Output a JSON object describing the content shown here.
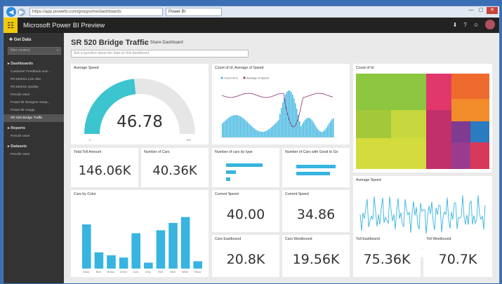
{
  "browser": {
    "address": "https://app.powerbi.com/groups/me/dashboards",
    "tab_label": "Power BI",
    "min": "—",
    "max": "▢",
    "close": "✕"
  },
  "app": {
    "title": "Microsoft Power BI Preview",
    "waffle_icon": "waffle-icon"
  },
  "sidebar": {
    "get_data": "Get Data",
    "filter_placeholder": "filter content",
    "dashboards_label": "Dashboards",
    "dashboards": [
      "Customer Feedback and...",
      "PD Metrics Live Site",
      "PD Metrics Quality",
      "Pencils Vase",
      "Power BI Designer Keep...",
      "Power BI Usage",
      "SR 520 Bridge Traffic"
    ],
    "reports_label": "Reports",
    "reports": [
      "Pencils Vase"
    ],
    "datasets_label": "Datasets",
    "datasets": [
      "Pencils Vase"
    ]
  },
  "dashboard": {
    "title": "SR 520 Bridge Traffic",
    "share": "Share Dashboard",
    "qa_placeholder": "Ask a question about the data on this dashboard"
  },
  "tiles": {
    "avg_speed": {
      "title": "Average Speed",
      "value": "46.78",
      "min": "0",
      "max": "100"
    },
    "count_id": {
      "title": "Count of Id, Average of Speed",
      "legend_a": "Count of Id",
      "legend_b": "Average of Speed"
    },
    "treemap": {
      "title": "Count of Id"
    },
    "total_toll": {
      "title": "Total Toll Amount",
      "value": "146.06K"
    },
    "num_cars": {
      "title": "Number of Cars",
      "value": "40.36K"
    },
    "cars_by_type": {
      "title": "Number of cars by type"
    },
    "cars_good": {
      "title": "Number of Cars with Good to Go"
    },
    "avg_speed_line": {
      "title": "Average Speed"
    },
    "cars_color": {
      "title": "Cars by Color",
      "categories": [
        "Black",
        "Blue",
        "Brown",
        "Green",
        "Gold",
        "Grey",
        "Red",
        "Silver",
        "White",
        "Yellow"
      ],
      "values": [
        60,
        22,
        18,
        15,
        48,
        8,
        52,
        62,
        70,
        10
      ]
    },
    "current_speed": {
      "title": "Current Speed",
      "value": "40.00"
    },
    "current_speed2": {
      "title": "Current Speed",
      "value": "34.86"
    },
    "cars_eastbound": {
      "title": "Cars Eastbound",
      "value": "20.8K"
    },
    "cars_westbound": {
      "title": "Cars Westbound",
      "value": "19.56K"
    },
    "toll_eastbound": {
      "title": "Toll Eastbound",
      "value": "75.36K"
    },
    "toll_westbound": {
      "title": "Toll Westbound",
      "value": "70.7K"
    }
  },
  "colors": {
    "accent": "#3cc4cf",
    "bar": "#37b4e0",
    "gauge_bg": "#e8e8e8",
    "brand": "#f2c80f"
  }
}
